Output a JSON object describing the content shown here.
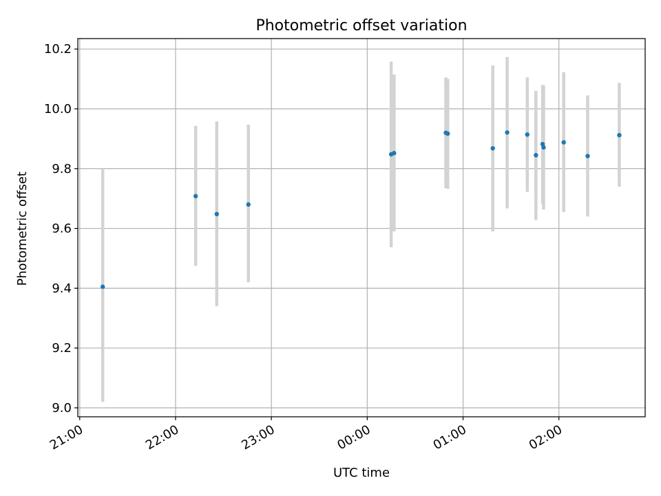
{
  "chart_data": {
    "type": "scatter",
    "title": "Photometric offset variation",
    "xlabel": "UTC time",
    "ylabel": "Photometric offset",
    "grid": true,
    "x_unit": "hours",
    "x_tick_values": [
      21,
      22,
      23,
      24,
      25,
      26
    ],
    "x_tick_labels": [
      "21:00",
      "22:00",
      "23:00",
      "00:00",
      "01:00",
      "02:00"
    ],
    "xlim": [
      20.98,
      26.9
    ],
    "ylim": [
      8.97,
      10.235
    ],
    "y_tick_values": [
      9.0,
      9.2,
      9.4,
      9.6,
      9.8,
      10.0,
      10.2
    ],
    "y_tick_labels": [
      "9.0",
      "9.2",
      "9.4",
      "9.6",
      "9.8",
      "10.0",
      "10.2"
    ],
    "colors": {
      "points": "#1f77b4",
      "errorbars": "#d3d3d3",
      "grid": "#b0b0b0"
    },
    "points": [
      {
        "x": 21.24,
        "y": 9.405,
        "lo": 9.02,
        "hi": 9.8
      },
      {
        "x": 22.21,
        "y": 9.708,
        "lo": 9.475,
        "hi": 9.943
      },
      {
        "x": 22.43,
        "y": 9.648,
        "lo": 9.34,
        "hi": 9.958
      },
      {
        "x": 22.76,
        "y": 9.68,
        "lo": 9.42,
        "hi": 9.947
      },
      {
        "x": 24.25,
        "y": 9.848,
        "lo": 9.537,
        "hi": 10.158
      },
      {
        "x": 24.28,
        "y": 9.852,
        "lo": 9.59,
        "hi": 10.115
      },
      {
        "x": 24.82,
        "y": 9.92,
        "lo": 9.735,
        "hi": 10.105
      },
      {
        "x": 24.84,
        "y": 9.917,
        "lo": 9.732,
        "hi": 10.1
      },
      {
        "x": 25.31,
        "y": 9.868,
        "lo": 9.59,
        "hi": 10.145
      },
      {
        "x": 25.46,
        "y": 9.921,
        "lo": 9.667,
        "hi": 10.173
      },
      {
        "x": 25.67,
        "y": 9.914,
        "lo": 9.722,
        "hi": 10.105
      },
      {
        "x": 25.76,
        "y": 9.845,
        "lo": 9.628,
        "hi": 10.06
      },
      {
        "x": 25.83,
        "y": 9.882,
        "lo": 9.683,
        "hi": 10.08
      },
      {
        "x": 25.84,
        "y": 9.871,
        "lo": 9.663,
        "hi": 10.078
      },
      {
        "x": 26.05,
        "y": 9.888,
        "lo": 9.655,
        "hi": 10.123
      },
      {
        "x": 26.3,
        "y": 9.842,
        "lo": 9.64,
        "hi": 10.045
      },
      {
        "x": 26.63,
        "y": 9.912,
        "lo": 9.74,
        "hi": 10.087
      }
    ]
  }
}
